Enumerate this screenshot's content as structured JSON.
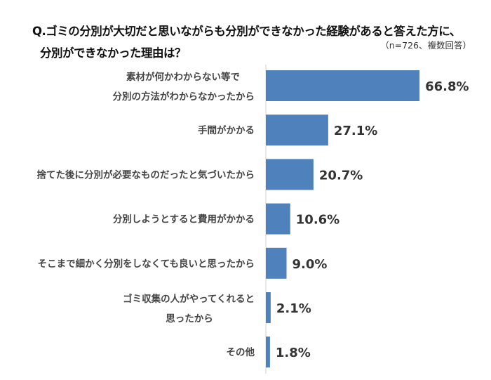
{
  "chart_data": {
    "type": "bar",
    "orientation": "horizontal",
    "title_lines": [
      "Q.ゴミの分別が大切だと思いながらも分別ができなかった経験があると答えた方に、",
      "分別ができなかった理由は？"
    ],
    "note": "（n=726、複数回答）",
    "categories": [
      [
        "素材が何かわからない等で",
        "分別の方法がわからなかったから"
      ],
      [
        "手間がかかる"
      ],
      [
        "捨てた後に分別が必要なものだったと気づいたから"
      ],
      [
        "分別しようとすると費用がかかる"
      ],
      [
        "そこまで細かく分別をしなくても良いと思ったから"
      ],
      [
        "ゴミ収集の人がやってくれると",
        "思ったから"
      ],
      [
        "その他"
      ]
    ],
    "values": [
      66.8,
      27.1,
      20.7,
      10.6,
      9.0,
      2.1,
      1.8
    ],
    "labels": [
      "66.8%",
      "27.1%",
      "20.7%",
      "10.6%",
      "9.0%",
      "2.1%",
      "1.8%"
    ],
    "unit": "%",
    "bar_color": "#4f81bd",
    "grid": false
  }
}
